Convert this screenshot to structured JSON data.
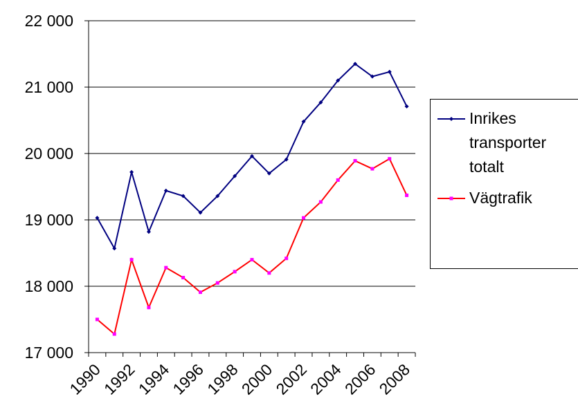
{
  "chart_data": {
    "type": "line",
    "categories": [
      "1990",
      null,
      "1992",
      null,
      "1994",
      null,
      "1996",
      null,
      "1998",
      null,
      "2000",
      null,
      "2002",
      null,
      "2004",
      null,
      "2006",
      null,
      "2008"
    ],
    "series": [
      {
        "name": "Inrikes transporter totalt",
        "color": "#000080",
        "marker_color": "#000080",
        "marker": "diamond",
        "values": [
          19030,
          18570,
          19720,
          18820,
          19440,
          19360,
          19110,
          19360,
          19660,
          19960,
          19700,
          19910,
          20480,
          20770,
          21100,
          21350,
          21160,
          21230,
          20710
        ]
      },
      {
        "name": "Vägtrafik",
        "color": "#ff0000",
        "marker_color": "#ff00ff",
        "marker": "square",
        "values": [
          17500,
          17280,
          18400,
          17680,
          18280,
          18130,
          17910,
          18050,
          18220,
          18400,
          18200,
          18420,
          19030,
          19270,
          19600,
          19890,
          19770,
          19920,
          19370
        ]
      }
    ],
    "ylim": [
      17000,
      22000
    ],
    "yticks": [
      {
        "value": 17000,
        "label": "17 000"
      },
      {
        "value": 18000,
        "label": "18 000"
      },
      {
        "value": 19000,
        "label": "19 000"
      },
      {
        "value": 20000,
        "label": "20 000"
      },
      {
        "value": 21000,
        "label": "21 000"
      },
      {
        "value": 22000,
        "label": "22 000"
      }
    ],
    "grid": true,
    "legend": "right"
  }
}
